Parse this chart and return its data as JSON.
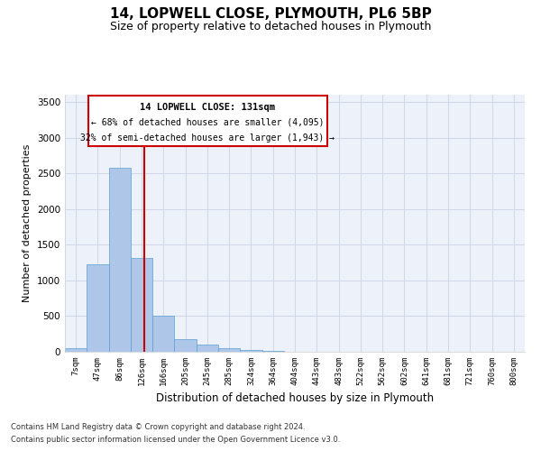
{
  "title": "14, LOPWELL CLOSE, PLYMOUTH, PL6 5BP",
  "subtitle": "Size of property relative to detached houses in Plymouth",
  "xlabel": "Distribution of detached houses by size in Plymouth",
  "ylabel": "Number of detached properties",
  "footnote1": "Contains HM Land Registry data © Crown copyright and database right 2024.",
  "footnote2": "Contains public sector information licensed under the Open Government Licence v3.0.",
  "annotation_line1": "14 LOPWELL CLOSE: 131sqm",
  "annotation_line2": "← 68% of detached houses are smaller (4,095)",
  "annotation_line3": "32% of semi-detached houses are larger (1,943) →",
  "bar_labels": [
    "7sqm",
    "47sqm",
    "86sqm",
    "126sqm",
    "166sqm",
    "205sqm",
    "245sqm",
    "285sqm",
    "324sqm",
    "364sqm",
    "404sqm",
    "443sqm",
    "483sqm",
    "522sqm",
    "562sqm",
    "602sqm",
    "641sqm",
    "681sqm",
    "721sqm",
    "760sqm",
    "800sqm"
  ],
  "bar_values": [
    50,
    1220,
    2580,
    1320,
    500,
    175,
    100,
    50,
    30,
    15,
    5,
    2,
    1,
    0,
    0,
    0,
    0,
    0,
    0,
    0,
    0
  ],
  "bar_color": "#aec6e8",
  "bar_edge_color": "#5a9fd4",
  "vline_color": "#cc0000",
  "ylim": [
    0,
    3600
  ],
  "yticks": [
    0,
    500,
    1000,
    1500,
    2000,
    2500,
    3000,
    3500
  ],
  "grid_color": "#d0d8e8",
  "bg_color": "#edf2fa",
  "box_edge_color": "#cc0000",
  "title_fontsize": 11,
  "subtitle_fontsize": 9
}
